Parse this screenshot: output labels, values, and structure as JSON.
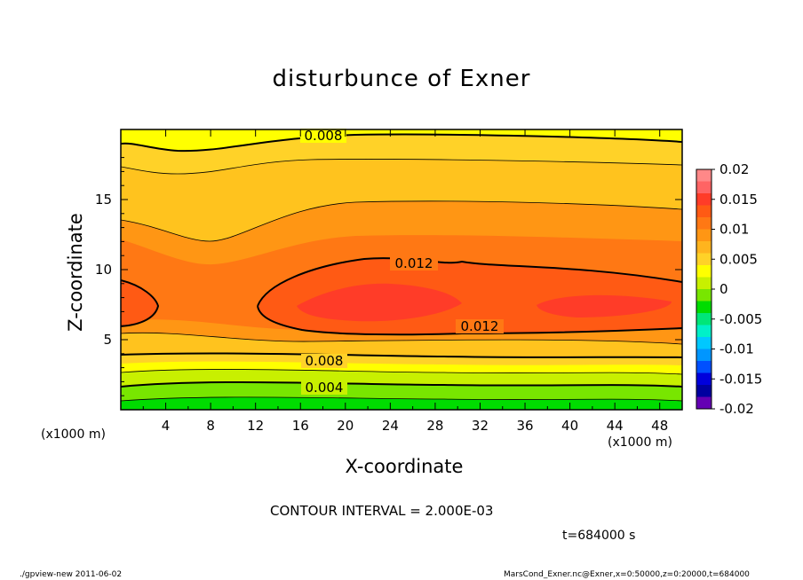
{
  "chart_data": {
    "type": "heatmap",
    "subtype": "filled-contour",
    "title": "disturbunce of Exner",
    "xlabel": "X-coordinate",
    "ylabel": "Z-coordinate",
    "x_unit_left": "(x1000 m)",
    "x_unit_right": "(x1000 m)",
    "xlim": [
      0,
      50
    ],
    "ylim": [
      0,
      20
    ],
    "x_ticks": [
      4,
      8,
      12,
      16,
      20,
      24,
      28,
      32,
      36,
      40,
      44,
      48
    ],
    "y_ticks": [
      5,
      10,
      15
    ],
    "contour_interval_text": "CONTOUR INTERVAL = 2.000E-03",
    "contour_labels": [
      "0.008",
      "0.012",
      "0.012",
      "0.008",
      "0.004"
    ],
    "colorbar": {
      "labels": [
        "0.02",
        "0.015",
        "0.01",
        "0.005",
        "0",
        "-0.005",
        "-0.01",
        "-0.015",
        "-0.02"
      ],
      "colors": [
        "#ff8888",
        "#ff6464",
        "#ff3c28",
        "#ff5a14",
        "#ff7814",
        "#ff9614",
        "#ffb41e",
        "#ffd228",
        "#ffff00",
        "#c8f000",
        "#78e600",
        "#00dc00",
        "#00e678",
        "#00f0c8",
        "#00c8ff",
        "#0096ff",
        "#0050ff",
        "#0000dc",
        "#0000a0",
        "#6400b4"
      ]
    },
    "time_text": "t=684000 s",
    "footer_left": "./gpview-new   2011-06-02",
    "footer_right": "MarsCond_Exner.nc@Exner,x=0:50000,z=0:20000,t=684000"
  }
}
